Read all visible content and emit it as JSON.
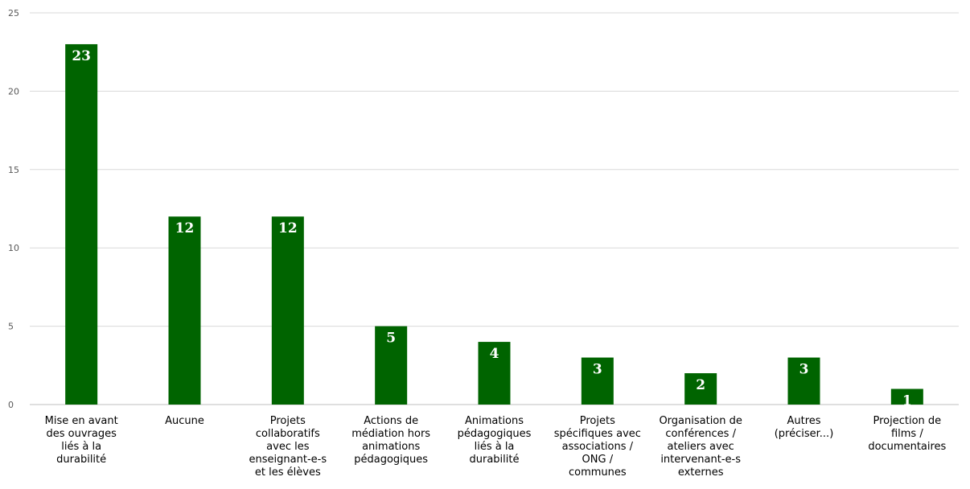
{
  "chart_data": {
    "type": "bar",
    "title": "",
    "xlabel": "",
    "ylabel": "",
    "categories": [
      [
        "Mise en avant",
        "des ouvrages",
        "liés à la",
        "durabilité"
      ],
      [
        "Aucune"
      ],
      [
        "Projets",
        "collaboratifs",
        "avec les",
        "enseignant-e-s",
        "et les élèves"
      ],
      [
        "Actions de",
        "médiation hors",
        "animations",
        "pédagogiques"
      ],
      [
        "Animations",
        "pédagogiques",
        "liés à la",
        "durabilité"
      ],
      [
        "Projets",
        "spécifiques avec",
        "associations /",
        "ONG /",
        "communes"
      ],
      [
        "Organisation de",
        "conférences /",
        "ateliers avec",
        "intervenant-e-s",
        "externes"
      ],
      [
        "Autres",
        "(préciser...)"
      ],
      [
        "Projection de",
        "films /",
        "documentaires"
      ]
    ],
    "values": [
      23,
      12,
      12,
      5,
      4,
      3,
      2,
      3,
      1
    ],
    "value_labels": [
      "23",
      "12",
      "12",
      "5",
      "4",
      "3",
      "2",
      "3",
      "1"
    ],
    "yticks": [
      "0",
      "5",
      "10",
      "15",
      "20",
      "25"
    ],
    "ylim": [
      0,
      25
    ],
    "grid": true,
    "legend": "none",
    "bar_color": "#006400",
    "label_color": "#ffffff"
  }
}
